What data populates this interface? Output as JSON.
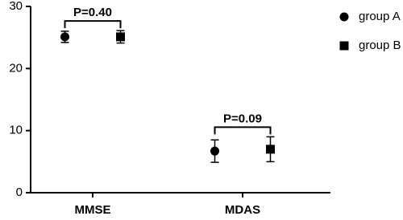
{
  "chart_data": {
    "type": "dot-error",
    "categories": [
      "MMSE",
      "MDAS"
    ],
    "series": [
      {
        "name": "group A",
        "marker": "circle",
        "color": "#000000",
        "values": [
          25.1,
          6.7
        ],
        "errors": [
          0.9,
          1.8
        ]
      },
      {
        "name": "group B",
        "marker": "square",
        "color": "#000000",
        "values": [
          25.1,
          7.0
        ],
        "errors": [
          1.0,
          2.0
        ]
      }
    ],
    "annotations": [
      "P=0.40",
      "P=0.09"
    ],
    "ylim": [
      0,
      30
    ],
    "yticks": [
      0,
      10,
      20,
      30
    ],
    "legend": "right"
  }
}
